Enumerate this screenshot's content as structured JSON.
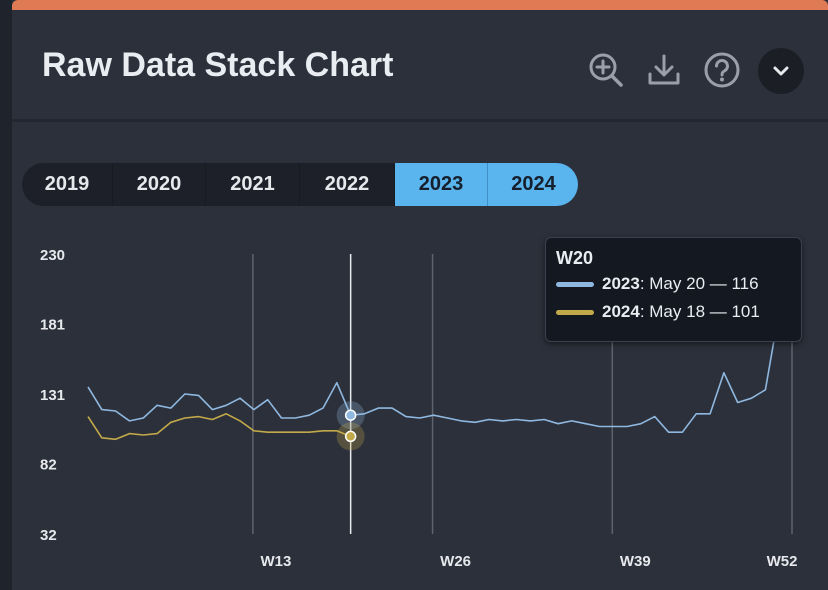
{
  "header": {
    "title": "Raw Data Stack Chart",
    "icons": [
      "zoom-in-icon",
      "download-icon",
      "help-icon",
      "chevron-down-icon"
    ]
  },
  "year_selector": {
    "years": [
      "2019",
      "2020",
      "2021",
      "2022",
      "2023",
      "2024"
    ],
    "selected": [
      "2023",
      "2024"
    ]
  },
  "colors": {
    "accent": "#e07a55",
    "series_2023": "#8fb8e0",
    "series_2024": "#c2a94a",
    "active_year": "#5ab4ee"
  },
  "tooltip": {
    "title": "W20",
    "rows": [
      {
        "year": "2023",
        "text": ": May 20 — 116",
        "color": "#8fb8e0"
      },
      {
        "year": "2024",
        "text": ": May 18 — 101",
        "color": "#c2a94a"
      }
    ]
  },
  "chart_data": {
    "type": "line",
    "y_ticks": [
      "230",
      "181",
      "131",
      "82",
      "32"
    ],
    "ylim": [
      32,
      230
    ],
    "x_ticks": [
      "W13",
      "W26",
      "W39",
      "W52"
    ],
    "xlim": [
      1,
      52
    ],
    "grid": "vertical lines at W13, W26, W39, W52",
    "hover_week": 20,
    "series": [
      {
        "name": "2023",
        "x": [
          1,
          2,
          3,
          4,
          5,
          6,
          7,
          8,
          9,
          10,
          11,
          12,
          13,
          14,
          15,
          16,
          17,
          18,
          19,
          20,
          21,
          22,
          23,
          24,
          25,
          26,
          27,
          28,
          29,
          30,
          31,
          32,
          33,
          34,
          35,
          36,
          37,
          38,
          39,
          40,
          41,
          42,
          43,
          44,
          45,
          46,
          47,
          48,
          49,
          50,
          51,
          52
        ],
        "values": [
          136,
          120,
          119,
          112,
          114,
          123,
          121,
          131,
          130,
          120,
          123,
          128,
          120,
          127,
          114,
          114,
          116,
          121,
          139,
          116,
          117,
          121,
          121,
          115,
          114,
          116,
          114,
          112,
          111,
          113,
          112,
          113,
          112,
          113,
          110,
          112,
          110,
          108,
          108,
          108,
          110,
          115,
          104,
          104,
          117,
          117,
          146,
          125,
          128,
          134,
          190,
          232
        ]
      },
      {
        "name": "2024",
        "x": [
          1,
          2,
          3,
          4,
          5,
          6,
          7,
          8,
          9,
          10,
          11,
          12,
          13,
          14,
          15,
          16,
          17,
          18,
          19,
          20
        ],
        "values": [
          115,
          100,
          99,
          103,
          102,
          103,
          111,
          114,
          115,
          113,
          117,
          112,
          105,
          104,
          104,
          104,
          104,
          105,
          105,
          101
        ]
      }
    ]
  }
}
